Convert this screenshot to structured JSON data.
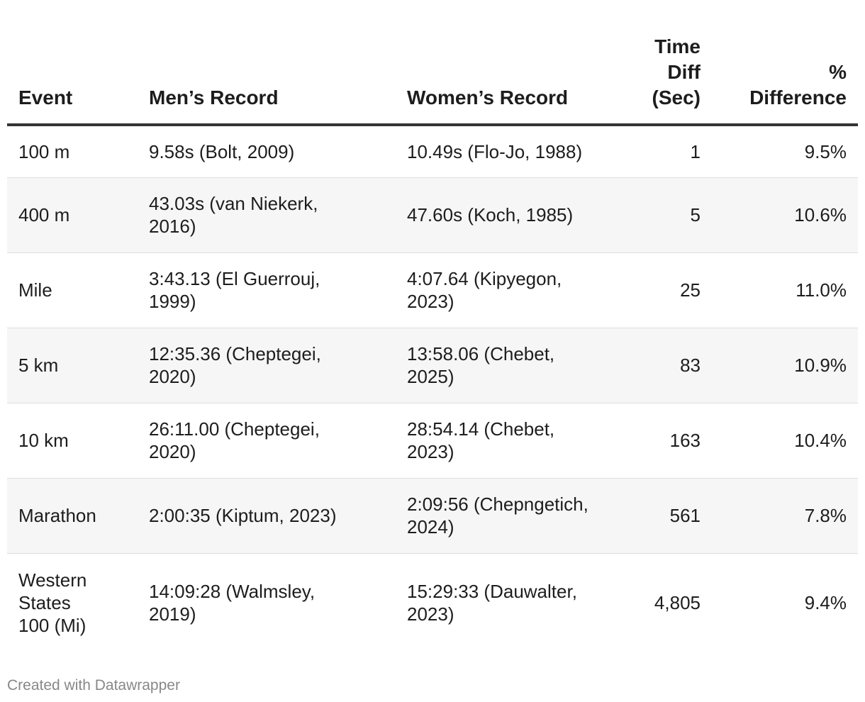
{
  "chart_data": {
    "type": "table",
    "columns": [
      "Event",
      "Men’s Record",
      "Women’s Record",
      "Time Diff (Sec)",
      "% Difference"
    ],
    "header_lines": {
      "event": [
        "Event"
      ],
      "men": [
        "Men’s Record"
      ],
      "women": [
        "Women’s Record"
      ],
      "diff": [
        "Time",
        "Diff",
        "(Sec)"
      ],
      "pct": [
        "%",
        "Difference"
      ]
    },
    "rows": [
      {
        "event": [
          "100 m"
        ],
        "men": [
          "9.58s (Bolt, 2009)"
        ],
        "women": [
          "10.49s (Flo-Jo, 1988)"
        ],
        "diff": "1",
        "pct": "9.5%"
      },
      {
        "event": [
          "400 m"
        ],
        "men": [
          "43.03s (van Niekerk,",
          "2016)"
        ],
        "women": [
          "47.60s (Koch, 1985)"
        ],
        "diff": "5",
        "pct": "10.6%"
      },
      {
        "event": [
          "Mile"
        ],
        "men": [
          "3:43.13 (El Guerrouj,",
          "1999)"
        ],
        "women": [
          "4:07.64 (Kipyegon,",
          "2023)"
        ],
        "diff": "25",
        "pct": "11.0%"
      },
      {
        "event": [
          "5 km"
        ],
        "men": [
          "12:35.36 (Cheptegei,",
          "2020)"
        ],
        "women": [
          "13:58.06 (Chebet,",
          "2025)"
        ],
        "diff": "83",
        "pct": "10.9%"
      },
      {
        "event": [
          "10 km"
        ],
        "men": [
          "26:11.00 (Cheptegei,",
          "2020)"
        ],
        "women": [
          "28:54.14 (Chebet,",
          "2023)"
        ],
        "diff": "163",
        "pct": "10.4%"
      },
      {
        "event": [
          "Marathon"
        ],
        "men": [
          "2:00:35 (Kiptum, 2023)"
        ],
        "women": [
          "2:09:56 (Chepngetich,",
          "2024)"
        ],
        "diff": "561",
        "pct": "7.8%"
      },
      {
        "event": [
          "Western",
          "States",
          "100 (Mi)"
        ],
        "men": [
          "14:09:28 (Walmsley,",
          "2019)"
        ],
        "women": [
          "15:29:33 (Dauwalter,",
          "2023)"
        ],
        "diff": "4,805",
        "pct": "9.4%"
      }
    ]
  },
  "colors": {
    "text": "#1d1d1d",
    "header_rule": "#333333",
    "row_alt_background": "#f6f6f6",
    "row_divider": "#dedede",
    "footer_text": "#888888"
  },
  "footer": {
    "credit": "Created with Datawrapper"
  }
}
